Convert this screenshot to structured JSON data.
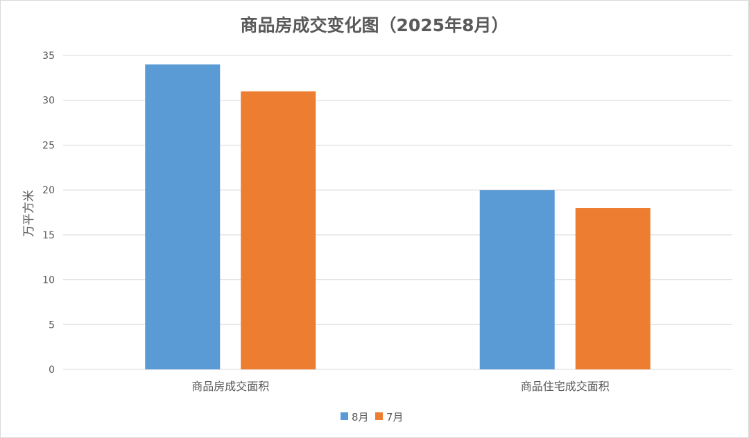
{
  "chart_data": {
    "type": "bar",
    "title": "商品房成交变化图（2025年8月）",
    "xlabel": "",
    "ylabel": "万平方米",
    "categories": [
      "商品房成交面积",
      "商品住宅成交面积"
    ],
    "series": [
      {
        "name": "8月",
        "values": [
          34,
          20
        ],
        "color": "#5B9BD5"
      },
      {
        "name": "7月",
        "values": [
          31,
          18
        ],
        "color": "#ED7D31"
      }
    ],
    "ylim": [
      0,
      35
    ],
    "yticks": [
      0,
      5,
      10,
      15,
      20,
      25,
      30,
      35
    ],
    "grid": true,
    "legend": "bottom"
  }
}
